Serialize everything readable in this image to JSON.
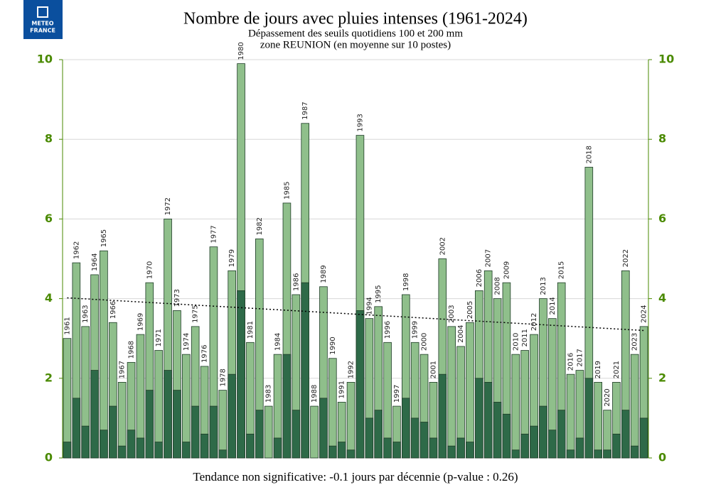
{
  "logo": [
    "METEO",
    "FRANCE"
  ],
  "chart_data": {
    "type": "bar",
    "title": "Nombre de jours avec pluies intenses (1961-2024)",
    "subtitle": [
      "Dépassement des seuils quotidiens 100 et 200 mm",
      "zone REUNION (en moyenne sur 10 postes)"
    ],
    "footer": "Tendance non significative: -0.1 jours par décennie (p-value : 0.26)",
    "categories": [
      "1961",
      "1962",
      "1963",
      "1964",
      "1965",
      "1966",
      "1967",
      "1968",
      "1969",
      "1970",
      "1971",
      "1972",
      "1973",
      "1974",
      "1975",
      "1976",
      "1977",
      "1978",
      "1979",
      "1980",
      "1981",
      "1982",
      "1983",
      "1984",
      "1985",
      "1986",
      "1987",
      "1988",
      "1989",
      "1990",
      "1991",
      "1992",
      "1993",
      "1994",
      "1995",
      "1996",
      "1997",
      "1998",
      "1999",
      "2000",
      "2001",
      "2002",
      "2003",
      "2004",
      "2005",
      "2006",
      "2007",
      "2008",
      "2009",
      "2010",
      "2011",
      "2012",
      "2013",
      "2014",
      "2015",
      "2016",
      "2017",
      "2018",
      "2019",
      "2020",
      "2021",
      "2022",
      "2023",
      "2024"
    ],
    "series": [
      {
        "color": "#8fbf8b",
        "values": [
          3.0,
          4.9,
          3.3,
          4.6,
          5.2,
          3.4,
          1.9,
          2.4,
          3.1,
          4.4,
          2.7,
          6.0,
          3.7,
          2.6,
          3.3,
          2.3,
          5.3,
          1.7,
          4.7,
          9.9,
          2.9,
          5.5,
          1.3,
          2.6,
          6.4,
          4.1,
          8.4,
          1.3,
          4.3,
          2.5,
          1.4,
          1.9,
          8.1,
          3.5,
          3.8,
          2.9,
          1.3,
          4.1,
          2.9,
          2.6,
          1.9,
          5.0,
          3.3,
          2.8,
          3.4,
          4.2,
          4.7,
          4.0,
          4.4,
          2.6,
          2.7,
          3.1,
          4.0,
          3.5,
          4.4,
          2.1,
          2.2,
          7.3,
          1.9,
          1.2,
          1.9,
          4.7,
          2.6,
          3.3
        ]
      },
      {
        "color": "#2e6a48",
        "values": [
          0.4,
          1.5,
          0.8,
          2.2,
          0.7,
          1.3,
          0.3,
          0.7,
          0.5,
          1.7,
          0.4,
          2.2,
          1.7,
          0.4,
          1.3,
          0.6,
          1.3,
          0.2,
          2.1,
          4.2,
          0.6,
          1.2,
          0,
          0.5,
          2.6,
          1.2,
          4.4,
          0,
          1.5,
          0.3,
          0.4,
          0.2,
          3.7,
          1.0,
          1.2,
          0.5,
          0.4,
          1.5,
          1.0,
          0.9,
          0.5,
          2.1,
          0.3,
          0.5,
          0.4,
          2.0,
          1.9,
          1.4,
          1.1,
          0.2,
          0.6,
          0.8,
          1.3,
          0.7,
          1.2,
          0.2,
          0.5,
          2.0,
          0.2,
          0.2,
          0.6,
          1.2,
          0.3,
          1.0
        ]
      }
    ],
    "trend": [
      4.02,
      3.2
    ],
    "ylim": [
      0,
      10
    ],
    "yticks": [
      0,
      2,
      4,
      6,
      8,
      10
    ],
    "y2lim": [
      0,
      10
    ],
    "y2ticks": [
      0,
      2,
      4,
      6,
      8,
      10
    ],
    "grid": true,
    "tick_color": "#4a8a00"
  }
}
